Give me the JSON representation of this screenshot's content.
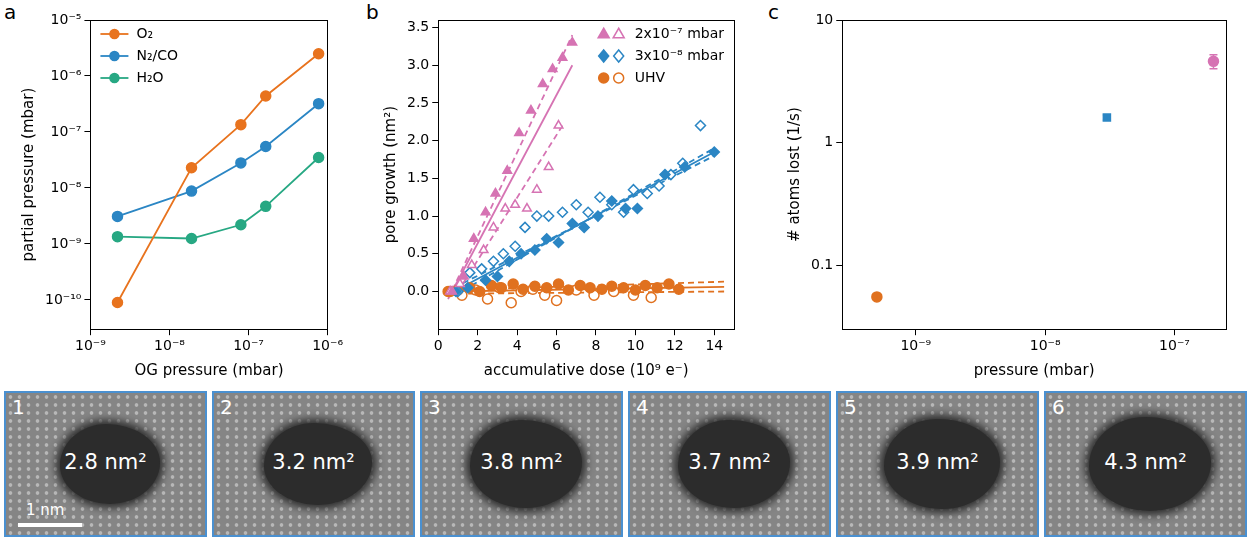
{
  "chart_data": [
    {
      "panel": "a",
      "type": "line",
      "x_label": "OG pressure (mbar)",
      "y_label": "partial pressure (mbar)",
      "log": true,
      "grid": false,
      "legend": "top-left",
      "xlim": [
        1e-09,
        1e-06
      ],
      "xticks": [
        {
          "value": 1e-09,
          "label": "10⁻⁹"
        },
        {
          "value": 1e-08,
          "label": "10⁻⁸"
        },
        {
          "value": 1e-07,
          "label": "10⁻⁷"
        },
        {
          "value": 1e-06,
          "label": "10⁻⁶"
        }
      ],
      "ylim": [
        3e-11,
        1e-05
      ],
      "yticks": [
        {
          "value": 1e-10,
          "label": "10⁻¹⁰"
        },
        {
          "value": 1e-09,
          "label": "10⁻⁹"
        },
        {
          "value": 1e-08,
          "label": "10⁻⁸"
        },
        {
          "value": 1e-07,
          "label": "10⁻⁷"
        },
        {
          "value": 1e-06,
          "label": "10⁻⁶"
        },
        {
          "value": 1e-05,
          "label": "10⁻⁵"
        }
      ],
      "series": [
        {
          "name": "O₂",
          "color": "#e8731e",
          "marker": "circle",
          "line_style": "solid",
          "x": [
            2.2e-09,
            1.9e-08,
            8e-08,
            1.65e-07,
            7.7e-07
          ],
          "values": [
            9e-11,
            2.3e-08,
            1.35e-07,
            4.4e-07,
            2.5e-06
          ]
        },
        {
          "name": "N₂/CO",
          "color": "#2b86c4",
          "marker": "circle",
          "line_style": "solid",
          "x": [
            2.2e-09,
            1.9e-08,
            8e-08,
            1.65e-07,
            7.7e-07
          ],
          "values": [
            3.1e-09,
            8.8e-09,
            2.8e-08,
            5.5e-08,
            3.2e-07
          ]
        },
        {
          "name": "H₂O",
          "color": "#27a883",
          "marker": "circle",
          "line_style": "solid",
          "x": [
            2.2e-09,
            1.9e-08,
            8e-08,
            1.65e-07,
            7.7e-07
          ],
          "values": [
            1.35e-09,
            1.25e-09,
            2.2e-09,
            4.7e-09,
            3.5e-08
          ]
        }
      ]
    },
    {
      "panel": "b",
      "type": "scatter",
      "x_label": "accumulative dose (10⁹ e⁻)",
      "y_label": "pore growth (nm²)",
      "grid": false,
      "legend": "top-right",
      "xlim": [
        0,
        15
      ],
      "xticks": [
        0,
        2,
        4,
        6,
        8,
        10,
        12,
        14
      ],
      "ylim": [
        -0.5,
        3.6
      ],
      "yticks": [
        {
          "value": 0,
          "label": "0.0"
        },
        0.5,
        {
          "value": 1,
          "label": "1.0"
        },
        1.5,
        {
          "value": 2,
          "label": "2.0"
        },
        2.5,
        {
          "value": 3,
          "label": "3.0"
        },
        3.5
      ],
      "series": [
        {
          "name": "2x10⁻⁷ mbar",
          "color": "#d673b3",
          "marker": "triangle",
          "x": [
            0.7,
            1.3,
            1.8,
            2.4,
            2.9,
            3.5,
            4.1,
            4.7,
            5.3,
            5.8,
            6.3,
            6.8
          ],
          "values": [
            0,
            0.2,
            0.7,
            1.05,
            1.3,
            1.6,
            2.1,
            2.4,
            2.75,
            2.95,
            3.1,
            3.3
          ]
        },
        {
          "name": "2x10⁻⁷ mbar",
          "color": "#d673b3",
          "marker": "triangle-open",
          "x": [
            0.6,
            1.1,
            1.7,
            2.3,
            2.8,
            3.4,
            3.9,
            4.5,
            5.0,
            5.6,
            6.1
          ],
          "values": [
            0,
            0.1,
            0.35,
            0.55,
            0.85,
            1.1,
            1.15,
            1.1,
            1.35,
            1.65,
            2.2
          ]
        },
        {
          "name": "3x10⁻⁸ mbar",
          "color": "#2b86c4",
          "marker": "diamond",
          "x": [
            0.9,
            1.5,
            2.4,
            3.0,
            3.6,
            4.2,
            4.9,
            5.5,
            6.1,
            6.8,
            7.4,
            8.1,
            8.8,
            9.5,
            10.1,
            11.5,
            12.5,
            14.0
          ],
          "values": [
            0,
            0.05,
            0.15,
            0.2,
            0.4,
            0.5,
            0.55,
            0.7,
            0.65,
            0.9,
            0.85,
            1.0,
            1.2,
            1.1,
            1.1,
            1.55,
            1.65,
            1.85
          ]
        },
        {
          "name": "3x10⁻⁸ mbar",
          "color": "#2b86c4",
          "marker": "diamond-open",
          "x": [
            1.0,
            1.6,
            2.2,
            2.8,
            3.3,
            3.9,
            4.4,
            5.0,
            5.6,
            6.3,
            7.0,
            7.6,
            8.2,
            8.8,
            9.4,
            9.9,
            10.6,
            11.2,
            11.8,
            12.4,
            13.3
          ],
          "values": [
            0,
            0.25,
            0.3,
            0.4,
            0.5,
            0.6,
            0.85,
            1.0,
            1.0,
            1.05,
            1.15,
            1.05,
            1.25,
            1.15,
            1.05,
            1.35,
            1.3,
            1.4,
            1.55,
            1.7,
            2.2
          ]
        },
        {
          "name": "UHV",
          "color": "#e0711f",
          "marker": "circle",
          "x": [
            0.5,
            1.0,
            1.6,
            2.1,
            2.7,
            3.2,
            3.8,
            4.3,
            4.9,
            5.5,
            6.1,
            6.6,
            7.2,
            7.7,
            8.3,
            8.8,
            9.4,
            10.0,
            10.5,
            11.1,
            11.7,
            12.2
          ],
          "values": [
            0,
            0.02,
            0.05,
            0,
            0.08,
            0.05,
            0.1,
            0.03,
            0.07,
            0.05,
            0.1,
            0.02,
            0.08,
            0.05,
            0.03,
            0.07,
            0.05,
            0.02,
            0.08,
            0.05,
            0.1,
            0.03
          ]
        },
        {
          "name": "UHV",
          "color": "#e0711f",
          "marker": "circle-open",
          "x": [
            0.6,
            1.2,
            1.9,
            2.5,
            3.1,
            3.7,
            4.2,
            4.8,
            5.4,
            6.0,
            7.0,
            7.9,
            8.9,
            9.9,
            10.8
          ],
          "values": [
            0,
            -0.05,
            0.02,
            -0.1,
            0.05,
            -0.15,
            0,
            0.03,
            -0.05,
            -0.12,
            0.02,
            -0.05,
            0,
            -0.05,
            -0.08
          ]
        },
        {
          "color": "#d673b3",
          "line_style": "solid",
          "x": [
            0.7,
            6.8
          ],
          "values": [
            0,
            3.0
          ]
        },
        {
          "color": "#d673b3",
          "line_style": "dashed",
          "x": [
            0.5,
            6.8
          ],
          "values": [
            -0.1,
            3.4
          ]
        },
        {
          "color": "#d673b3",
          "line_style": "dashed",
          "x": [
            1.0,
            6.3
          ],
          "values": [
            0,
            2.2
          ]
        },
        {
          "color": "#2b86c4",
          "line_style": "solid",
          "x": [
            0.8,
            14.0
          ],
          "values": [
            0,
            1.85
          ]
        },
        {
          "color": "#2b86c4",
          "line_style": "dashed",
          "x": [
            0.8,
            14.0
          ],
          "values": [
            -0.05,
            1.9
          ]
        },
        {
          "color": "#2b86c4",
          "line_style": "dashed",
          "x": [
            0.8,
            14.0
          ],
          "values": [
            0.05,
            1.8
          ]
        },
        {
          "color": "#e0711f",
          "line_style": "solid",
          "x": [
            0.5,
            14.5
          ],
          "values": [
            0,
            0.06
          ]
        },
        {
          "color": "#e0711f",
          "line_style": "dashed",
          "x": [
            0.5,
            14.5
          ],
          "values": [
            0.02,
            0.13
          ]
        },
        {
          "color": "#e0711f",
          "line_style": "dashed",
          "x": [
            0.5,
            14.5
          ],
          "values": [
            -0.03,
            0
          ]
        }
      ]
    },
    {
      "panel": "c",
      "type": "scatter",
      "x_label": "pressure (mbar)",
      "y_label": "# atoms lost (1/s)",
      "log": true,
      "grid": false,
      "xlim": [
        2.7e-10,
        2.5e-07
      ],
      "xticks": [
        {
          "value": 1e-09,
          "label": "10⁻⁹"
        },
        {
          "value": 1e-08,
          "label": "10⁻⁸"
        },
        {
          "value": 1e-07,
          "label": "10⁻⁷"
        }
      ],
      "ylim": [
        0.03,
        10
      ],
      "yticks": [
        0.1,
        1,
        10
      ],
      "series": [
        {
          "color": "#e0711f",
          "marker": "circle",
          "x": [
            5e-10
          ],
          "values": [
            0.055
          ],
          "errors": [
            0.003
          ]
        },
        {
          "color": "#2b86c4",
          "marker": "square",
          "x": [
            3e-08
          ],
          "values": [
            1.6
          ],
          "errors": [
            0.08
          ]
        },
        {
          "color": "#d673b3",
          "marker": "circle",
          "x": [
            2e-07
          ],
          "values": [
            4.6
          ],
          "errors": [
            0.6
          ]
        }
      ]
    }
  ],
  "images": {
    "scale_bar": "1 nm",
    "panels": [
      {
        "label": "1",
        "area": "2.8 nm²"
      },
      {
        "label": "2",
        "area": "3.2 nm²"
      },
      {
        "label": "3",
        "area": "3.8 nm²"
      },
      {
        "label": "4",
        "area": "3.7 nm²"
      },
      {
        "label": "5",
        "area": "3.9 nm²"
      },
      {
        "label": "6",
        "area": "4.3 nm²"
      }
    ]
  }
}
